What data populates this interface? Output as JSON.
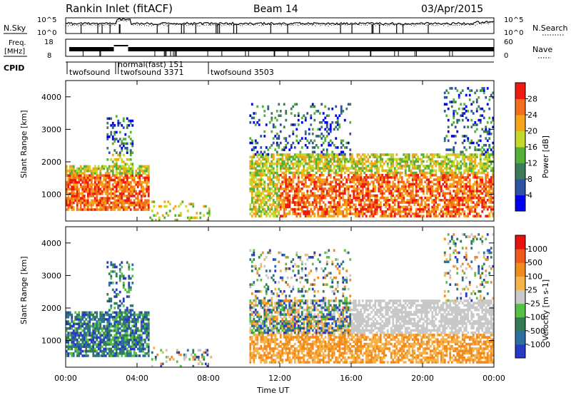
{
  "header": {
    "station": "Rankin Inlet (fitACF)",
    "beam": "Beam 14",
    "date": "03/Apr/2015"
  },
  "noise_panel": {
    "left_label": "N.Sky",
    "right_label": "N.Search",
    "left_ticks": [
      "10^5",
      "10^0"
    ],
    "right_ticks": [
      "10^5",
      "10^0"
    ]
  },
  "freq_panel": {
    "left_label_1": "Freq.",
    "left_label_2": "[MHz]",
    "right_label": "Nave",
    "left_ticks": [
      "18",
      "8"
    ],
    "right_ticks": [
      "60",
      "0"
    ]
  },
  "cpid": {
    "label": "CPID",
    "segments": [
      {
        "time_h": 0.08,
        "label": "twofsound"
      },
      {
        "time_h": 2.8,
        "label": "normal(fast) 151"
      },
      {
        "time_h": 2.95,
        "label": "twofsound 3371"
      },
      {
        "time_h": 8.0,
        "label": "twofsound 3503"
      }
    ]
  },
  "chart_data": [
    {
      "type": "heatmap",
      "title": "Power",
      "ylabel": "Slant Range [km]",
      "yticks": [
        "1000",
        "2000",
        "3000",
        "4000"
      ],
      "xlim_hours": [
        0,
        24
      ],
      "ylim": [
        180,
        4500
      ],
      "colorbar": {
        "label": "Power [dB]",
        "tick_labels": [
          "4",
          "8",
          "12",
          "16",
          "20",
          "24",
          "28"
        ],
        "colors": [
          "#0000ee",
          "#2d52a3",
          "#3c7a5a",
          "#55b03a",
          "#c4d92a",
          "#f6a51a",
          "#f36f1b",
          "#ee1a10"
        ]
      }
    },
    {
      "type": "heatmap",
      "title": "Velocity",
      "ylabel": "Slant Range [km]",
      "yticks": [
        "1000",
        "2000",
        "3000",
        "4000"
      ],
      "xlim_hours": [
        0,
        24
      ],
      "ylim": [
        180,
        4500
      ],
      "colorbar": {
        "label": "Velocity [m s-1]",
        "tick_labels": [
          "1000",
          "500",
          "100",
          "25",
          "-25",
          "-100",
          "-500",
          "-1000"
        ],
        "colors": [
          "#2a38c7",
          "#2d6fa0",
          "#347a55",
          "#58c046",
          "#c8c8c8",
          "#f7b34b",
          "#f28a1c",
          "#ef5a1c",
          "#e8110f"
        ]
      }
    }
  ],
  "x_axis": {
    "tick_labels": [
      "00:00",
      "04:00",
      "08:00",
      "12:00",
      "16:00",
      "20:00",
      "00:00"
    ],
    "label": "Time UT"
  }
}
